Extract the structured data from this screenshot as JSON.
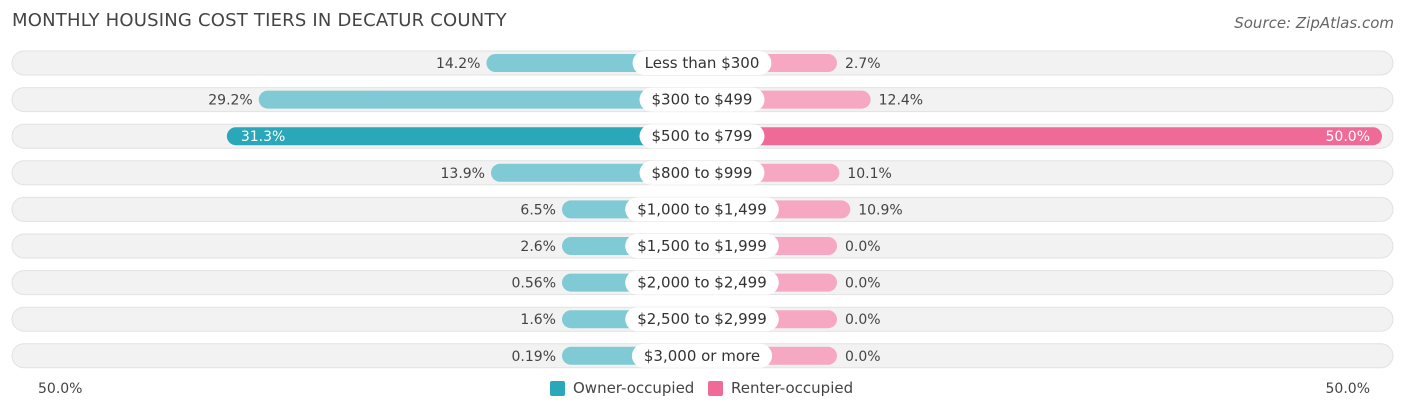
{
  "title": "MONTHLY HOUSING COST TIERS IN DECATUR COUNTY",
  "source": "Source: ZipAtlas.com",
  "colors": {
    "owner_strong": "#2aa7b8",
    "owner_light": "#7fcad4",
    "renter_strong": "#f06a97",
    "renter_light": "#f6a7c1"
  },
  "chart_data": {
    "type": "bar",
    "orientation": "diverging-horizontal",
    "categories": [
      "Less than $300",
      "$300 to $499",
      "$500 to $799",
      "$800 to $999",
      "$1,000 to $1,499",
      "$1,500 to $1,999",
      "$2,000 to $2,499",
      "$2,500 to $2,999",
      "$3,000 or more"
    ],
    "series": [
      {
        "name": "Owner-occupied",
        "values": [
          14.2,
          29.2,
          31.3,
          13.9,
          6.5,
          2.6,
          0.56,
          1.6,
          0.19
        ],
        "labels": [
          "14.2%",
          "29.2%",
          "31.3%",
          "13.9%",
          "6.5%",
          "2.6%",
          "0.56%",
          "1.6%",
          "0.19%"
        ]
      },
      {
        "name": "Renter-occupied",
        "values": [
          2.7,
          12.4,
          50.0,
          10.1,
          10.9,
          0.0,
          0.0,
          0.0,
          0.0
        ],
        "labels": [
          "2.7%",
          "12.4%",
          "50.0%",
          "10.1%",
          "10.9%",
          "0.0%",
          "0.0%",
          "0.0%",
          "0.0%"
        ]
      }
    ],
    "xlim": [
      -50,
      50
    ],
    "axis_labels": {
      "left": "50.0%",
      "right": "50.0%"
    },
    "legend_placement": "bottom-center"
  }
}
